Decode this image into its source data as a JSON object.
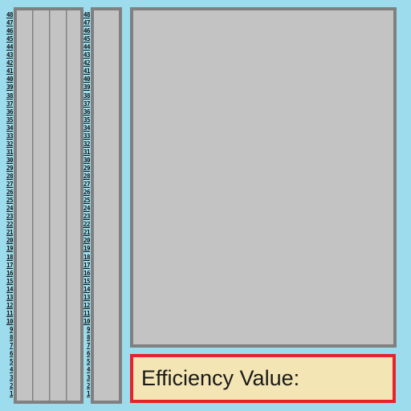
{
  "rack": {
    "row_labels": [
      "48",
      "47",
      "46",
      "45",
      "44",
      "43",
      "42",
      "41",
      "40",
      "39",
      "38",
      "37",
      "36",
      "35",
      "34",
      "33",
      "32",
      "31",
      "30",
      "29",
      "28",
      "27",
      "26",
      "25",
      "24",
      "23",
      "22",
      "21",
      "20",
      "19",
      "18",
      "17",
      "16",
      "15",
      "14",
      "13",
      "12",
      "11",
      "10",
      "9",
      "8",
      "7",
      "6",
      "5",
      "4",
      "3",
      "2",
      "1"
    ]
  },
  "efficiency": {
    "label": "Efficiency Value:"
  },
  "colors": {
    "background": "#9cdcec",
    "panel": "#c3c3c3",
    "panel_border": "#808080",
    "efficiency_background": "#f4e5b5",
    "efficiency_border": "#e8212a"
  }
}
